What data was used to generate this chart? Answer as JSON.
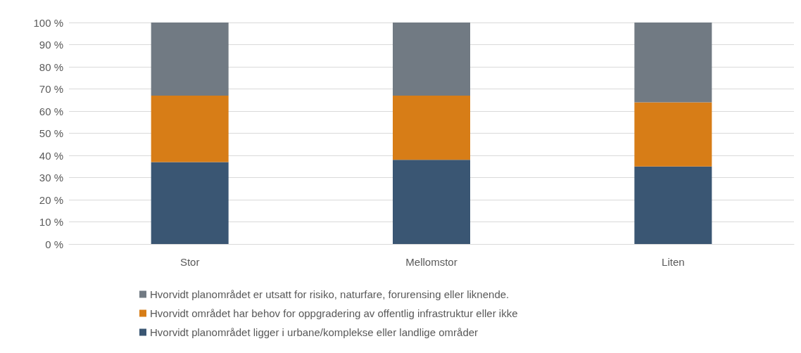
{
  "chart_data": {
    "type": "bar",
    "stacked": true,
    "categories": [
      "Stor",
      "Mellomstor",
      "Liten"
    ],
    "series": [
      {
        "name": "Hvorvidt planområdet ligger i urbane/komplekse eller landlige områder",
        "color": "#3a5673",
        "values": [
          37,
          38,
          35
        ]
      },
      {
        "name": "Hvorvidt området har behov for oppgradering av offentlig infrastruktur eller ikke",
        "color": "#d77d17",
        "values": [
          30,
          29,
          29
        ]
      },
      {
        "name": "Hvorvidt planområdet er utsatt for risiko, naturfare, forurensing eller liknende.",
        "color": "#717a83",
        "values": [
          33,
          33,
          36
        ]
      }
    ],
    "ylim": [
      0,
      100
    ],
    "yticks": [
      {
        "value": 0,
        "label": "0 %"
      },
      {
        "value": 10,
        "label": "10 %"
      },
      {
        "value": 20,
        "label": "20 %"
      },
      {
        "value": 30,
        "label": "30 %"
      },
      {
        "value": 40,
        "label": "40 %"
      },
      {
        "value": 50,
        "label": "50 %"
      },
      {
        "value": 60,
        "label": "60 %"
      },
      {
        "value": 70,
        "label": "70 %"
      },
      {
        "value": 80,
        "label": "80 %"
      },
      {
        "value": 90,
        "label": "90 %"
      },
      {
        "value": 100,
        "label": "100 %"
      }
    ],
    "grid": "y",
    "legend": "bottom"
  }
}
